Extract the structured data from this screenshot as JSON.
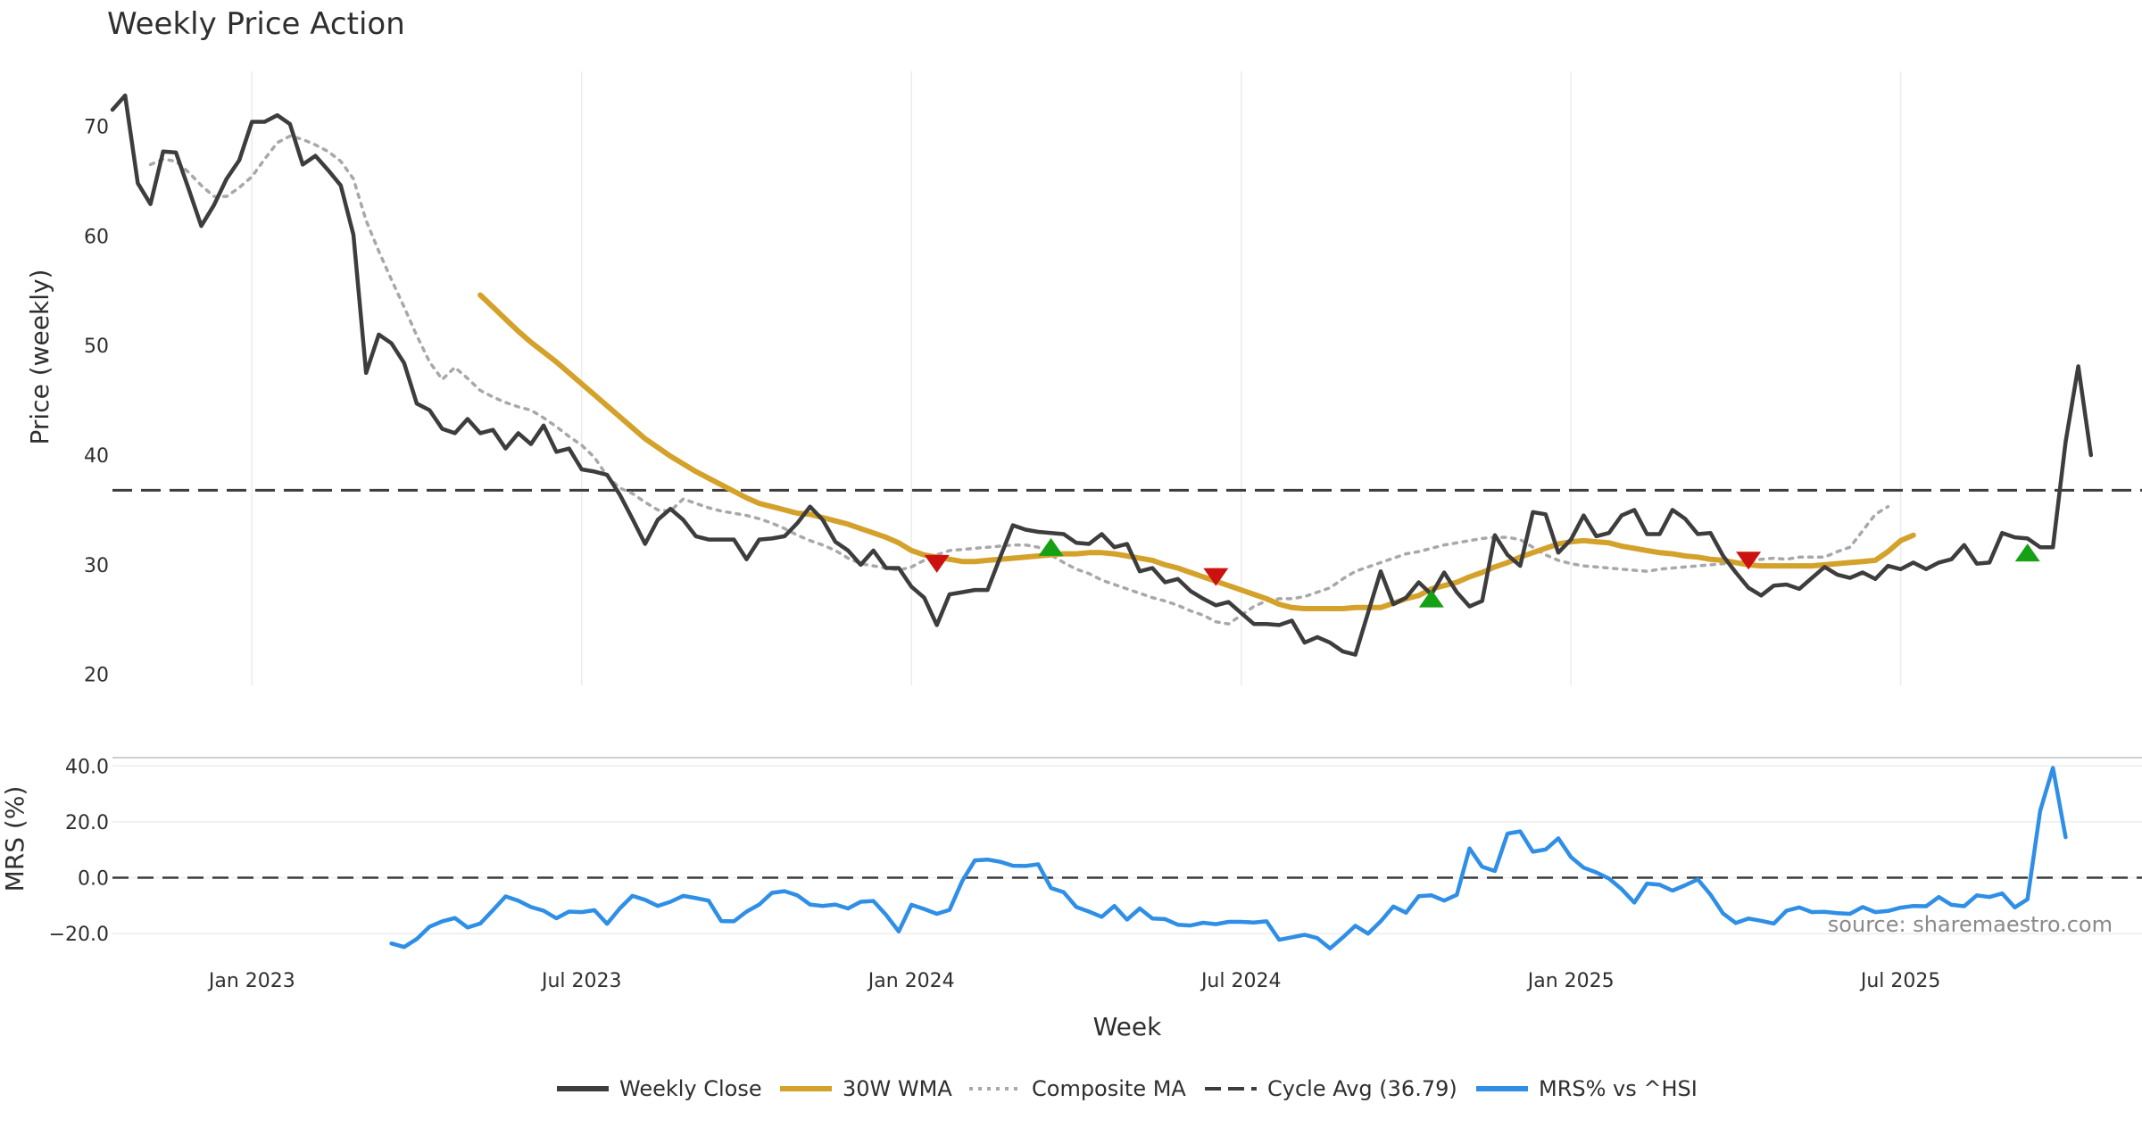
{
  "chart_data": {
    "type": "line",
    "title": "Weekly Price Action",
    "source": "source: sharemaestro.com",
    "xlabel": "Week",
    "x_ticks": [
      "Jan 2023",
      "Jul 2023",
      "Jan 2024",
      "Jul 2024",
      "Jan 2025",
      "Jul 2025"
    ],
    "x_tick_week_index": [
      11,
      37,
      63,
      89,
      115,
      141
    ],
    "x_range_weeks": [
      0,
      157
    ],
    "price_panel": {
      "ylabel": "Price (weekly)",
      "ylim": [
        19,
        75
      ],
      "y_ticks": [
        20,
        30,
        40,
        50,
        60,
        70
      ],
      "y_tick_labels": [
        "20",
        "30",
        "40",
        "50",
        "60",
        "70"
      ],
      "cycle_avg": 36.79
    },
    "mrs_panel": {
      "ylabel": "MRS (%)",
      "ylim": [
        -26,
        42
      ],
      "y_ticks": [
        -20,
        0,
        20,
        40
      ],
      "y_tick_labels": [
        "−20.0",
        "0.0",
        "20.0",
        "40.0"
      ]
    },
    "legend": [
      {
        "label": "Weekly Close",
        "color": "#3d3d3d",
        "style": "solid"
      },
      {
        "label": "30W WMA",
        "color": "#d4a12a",
        "style": "solid"
      },
      {
        "label": "Composite MA",
        "color": "#a8a8a8",
        "style": "dotted"
      },
      {
        "label": "Cycle Avg (36.79)",
        "color": "#3d3d3d",
        "style": "dashed"
      },
      {
        "label": "MRS% vs ^HSI",
        "color": "#2f8fe6",
        "style": "solid"
      }
    ],
    "signals": [
      {
        "type": "sell",
        "week": 65,
        "value": 30.2,
        "color": "#cc1111"
      },
      {
        "type": "buy",
        "week": 74,
        "value": 31.5,
        "color": "#15a015"
      },
      {
        "type": "sell",
        "week": 87,
        "value": 29.0,
        "color": "#cc1111"
      },
      {
        "type": "buy",
        "week": 104,
        "value": 26.8,
        "color": "#15a015"
      },
      {
        "type": "sell",
        "week": 129,
        "value": 30.5,
        "color": "#cc1111"
      },
      {
        "type": "buy",
        "week": 151,
        "value": 31.0,
        "color": "#15a015"
      }
    ],
    "series": [
      {
        "name": "Weekly Close",
        "color": "#3d3d3d",
        "start_week": 0,
        "values": [
          71.5,
          72.8,
          64.8,
          62.9,
          67.7,
          67.6,
          64.3,
          60.9,
          62.8,
          65.2,
          66.9,
          70.4,
          70.4,
          71.0,
          70.2,
          66.5,
          67.3,
          66.0,
          64.6,
          60.1,
          47.5,
          51.0,
          50.2,
          48.4,
          44.7,
          44.1,
          42.4,
          42.0,
          43.3,
          42.0,
          42.3,
          40.6,
          42.0,
          41.0,
          42.7,
          40.3,
          40.6,
          38.7,
          38.5,
          38.2,
          36.4,
          34.2,
          31.9,
          34.1,
          35.1,
          34.1,
          32.6,
          32.3,
          32.3,
          32.3,
          30.5,
          32.3,
          32.4,
          32.6,
          33.8,
          35.3,
          34.1,
          32.1,
          31.3,
          30.0,
          31.3,
          29.7,
          29.7,
          28.0,
          27.0,
          24.5,
          27.3,
          27.5,
          27.7,
          27.7,
          30.7,
          33.6,
          33.2,
          33.0,
          32.9,
          32.8,
          32.0,
          31.9,
          32.8,
          31.6,
          31.9,
          29.4,
          29.7,
          28.4,
          28.7,
          27.6,
          26.9,
          26.3,
          26.6,
          25.6,
          24.6,
          24.6,
          24.5,
          24.9,
          22.9,
          23.4,
          22.9,
          22.1,
          21.8,
          25.6,
          29.4,
          26.4,
          27.0,
          28.4,
          27.3,
          29.3,
          27.5,
          26.2,
          26.7,
          32.7,
          30.9,
          29.9,
          34.8,
          34.6,
          31.1,
          32.3,
          34.5,
          32.6,
          32.9,
          34.5,
          35.0,
          32.8,
          32.8,
          35.0,
          34.2,
          32.8,
          32.9,
          30.8,
          29.3,
          27.9,
          27.2,
          28.1,
          28.2,
          27.8,
          28.8,
          29.8,
          29.1,
          28.8,
          29.3,
          28.7,
          29.9,
          29.6,
          30.2,
          29.6,
          30.2,
          30.5,
          31.8,
          30.1,
          30.2,
          32.9,
          32.5,
          32.4,
          31.6,
          31.6,
          41.2,
          48.1,
          40.0
        ]
      },
      {
        "name": "30W WMA",
        "color": "#d4a12a",
        "start_week": 29,
        "values": [
          54.6,
          53.5,
          52.4,
          51.3,
          50.3,
          49.4,
          48.5,
          47.5,
          46.5,
          45.5,
          44.5,
          43.5,
          42.5,
          41.5,
          40.7,
          39.9,
          39.2,
          38.5,
          37.9,
          37.3,
          36.7,
          36.1,
          35.6,
          35.3,
          35.0,
          34.7,
          34.6,
          34.3,
          34.0,
          33.7,
          33.3,
          32.9,
          32.5,
          32.0,
          31.3,
          30.9,
          30.7,
          30.5,
          30.3,
          30.3,
          30.4,
          30.5,
          30.6,
          30.7,
          30.8,
          30.9,
          31.0,
          31.0,
          31.1,
          31.1,
          31.0,
          30.8,
          30.6,
          30.4,
          30.0,
          29.7,
          29.3,
          28.9,
          28.5,
          28.1,
          27.7,
          27.3,
          26.9,
          26.4,
          26.1,
          26.0,
          26.0,
          26.0,
          26.0,
          26.1,
          26.1,
          26.1,
          26.5,
          26.9,
          27.2,
          27.8,
          28.1,
          28.4,
          28.9,
          29.3,
          29.8,
          30.2,
          30.7,
          31.1,
          31.5,
          31.9,
          32.1,
          32.2,
          32.1,
          32.0,
          31.7,
          31.5,
          31.3,
          31.1,
          31.0,
          30.8,
          30.7,
          30.5,
          30.4,
          30.2,
          30.0,
          29.9,
          29.9,
          29.9,
          29.9,
          29.9,
          30.0,
          30.1,
          30.2,
          30.3,
          30.4,
          31.2,
          32.2,
          32.7
        ]
      },
      {
        "name": "Composite MA",
        "color": "#a8a8a8",
        "start_week": 3,
        "values": [
          66.5,
          67.0,
          66.8,
          65.8,
          64.6,
          63.6,
          63.6,
          64.4,
          65.4,
          67.0,
          68.5,
          69.1,
          68.8,
          68.3,
          67.7,
          66.8,
          65.2,
          61.4,
          58.6,
          56.0,
          53.5,
          50.9,
          48.5,
          46.9,
          48.0,
          47.0,
          45.9,
          45.3,
          44.8,
          44.4,
          44.1,
          43.4,
          42.6,
          41.7,
          40.9,
          39.8,
          38.1,
          37.0,
          36.5,
          35.7,
          35.0,
          34.9,
          36.0,
          35.6,
          35.2,
          34.9,
          34.7,
          34.5,
          34.2,
          33.8,
          33.3,
          32.7,
          32.2,
          31.8,
          31.3,
          30.6,
          30.1,
          29.9,
          29.7,
          29.5,
          29.8,
          30.4,
          30.9,
          31.3,
          31.4,
          31.5,
          31.6,
          31.7,
          31.8,
          31.8,
          31.6,
          30.9,
          30.2,
          29.6,
          29.2,
          28.6,
          28.2,
          27.8,
          27.4,
          27.0,
          26.7,
          26.3,
          25.8,
          25.4,
          24.8,
          24.6,
          25.4,
          26.2,
          26.7,
          26.9,
          26.9,
          27.1,
          27.5,
          27.9,
          28.7,
          29.4,
          29.8,
          30.2,
          30.6,
          31.0,
          31.2,
          31.5,
          31.8,
          32.0,
          32.2,
          32.4,
          32.5,
          32.5,
          32.3,
          31.6,
          30.9,
          30.4,
          30.1,
          29.9,
          29.8,
          29.7,
          29.6,
          29.5,
          29.4,
          29.6,
          29.7,
          29.8,
          29.9,
          30.0,
          30.1,
          30.2,
          30.3,
          30.5,
          30.6,
          30.5,
          30.7,
          30.7,
          30.7,
          31.2,
          31.6,
          33.1,
          34.6,
          35.3
        ]
      },
      {
        "name": "MRS% vs ^HSI",
        "color": "#2f8fe6",
        "start_week": 22,
        "values": [
          -23.5,
          -24.8,
          -21.9,
          -17.5,
          -15.6,
          -14.4,
          -17.8,
          -16.4,
          -11.6,
          -6.7,
          -8.2,
          -10.5,
          -11.8,
          -14.5,
          -12.1,
          -12.3,
          -11.6,
          -16.5,
          -11.0,
          -6.5,
          -7.9,
          -10.1,
          -8.6,
          -6.5,
          -7.3,
          -8.2,
          -15.5,
          -15.6,
          -12.1,
          -9.6,
          -5.4,
          -4.8,
          -6.3,
          -9.6,
          -10.1,
          -9.6,
          -11.0,
          -8.6,
          -8.3,
          -13.3,
          -19.2,
          -9.7,
          -11.2,
          -12.9,
          -11.5,
          -1.2,
          6.2,
          6.5,
          5.7,
          4.3,
          4.2,
          4.8,
          -3.7,
          -5.2,
          -10.5,
          -12.1,
          -14.0,
          -10.1,
          -15.0,
          -11.0,
          -14.6,
          -14.8,
          -16.8,
          -17.1,
          -16.1,
          -16.6,
          -15.8,
          -15.8,
          -16.0,
          -15.6,
          -22.2,
          -21.3,
          -20.4,
          -21.6,
          -25.3,
          -21.4,
          -17.2,
          -20.0,
          -15.6,
          -10.3,
          -12.5,
          -6.6,
          -6.3,
          -8.2,
          -6.1,
          10.5,
          3.9,
          2.4,
          15.8,
          16.6,
          9.3,
          10.1,
          14.1,
          7.4,
          3.6,
          1.9,
          -0.3,
          -4.1,
          -8.9,
          -2.1,
          -2.5,
          -4.6,
          -2.7,
          -0.6,
          -6.0,
          -12.8,
          -16.2,
          -14.6,
          -15.4,
          -16.4,
          -11.8,
          -10.6,
          -12.3,
          -12.2,
          -12.7,
          -12.9,
          -10.5,
          -12.3,
          -11.9,
          -10.7,
          -10.1,
          -10.2,
          -6.9,
          -9.7,
          -10.2,
          -6.3,
          -6.9,
          -5.6,
          -10.6,
          -7.7,
          23.9,
          39.3,
          14.5
        ]
      }
    ]
  }
}
